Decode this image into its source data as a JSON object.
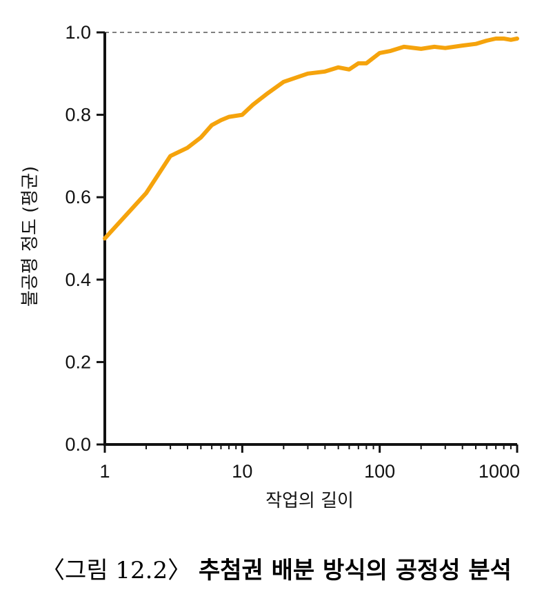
{
  "chart_data": {
    "type": "line",
    "xlabel": "작업의 길이",
    "ylabel": "불공평 정도 (평균)",
    "x_scale": "log",
    "xlim": [
      1,
      1000
    ],
    "ylim": [
      0,
      1
    ],
    "x_ticks": [
      1,
      10,
      100,
      1000
    ],
    "x_tick_labels": [
      "1",
      "10",
      "100",
      "1000"
    ],
    "y_ticks": [
      0,
      0.2,
      0.4,
      0.6,
      0.8,
      1.0
    ],
    "y_tick_labels": [
      "0.0",
      "0.2",
      "0.4",
      "0.6",
      "0.8",
      "1.0"
    ],
    "reference_line": {
      "y": 1.0,
      "style": "dashed"
    },
    "grid": false,
    "line_color": "#f5a30c",
    "series": [
      {
        "x": [
          1,
          2,
          3,
          4,
          5,
          6,
          7,
          8,
          10,
          12,
          15,
          20,
          30,
          40,
          50,
          60,
          70,
          80,
          100,
          120,
          150,
          200,
          250,
          300,
          400,
          500,
          600,
          700,
          800,
          900,
          1000
        ],
        "y": [
          0.5,
          0.61,
          0.7,
          0.72,
          0.745,
          0.775,
          0.787,
          0.795,
          0.8,
          0.825,
          0.85,
          0.88,
          0.9,
          0.905,
          0.915,
          0.91,
          0.925,
          0.925,
          0.95,
          0.955,
          0.965,
          0.96,
          0.965,
          0.962,
          0.968,
          0.972,
          0.98,
          0.985,
          0.985,
          0.982,
          0.985
        ]
      }
    ]
  },
  "caption": {
    "label": "〈그림 12.2〉",
    "title": "추첨권 배분 방식의 공정성 분석"
  }
}
